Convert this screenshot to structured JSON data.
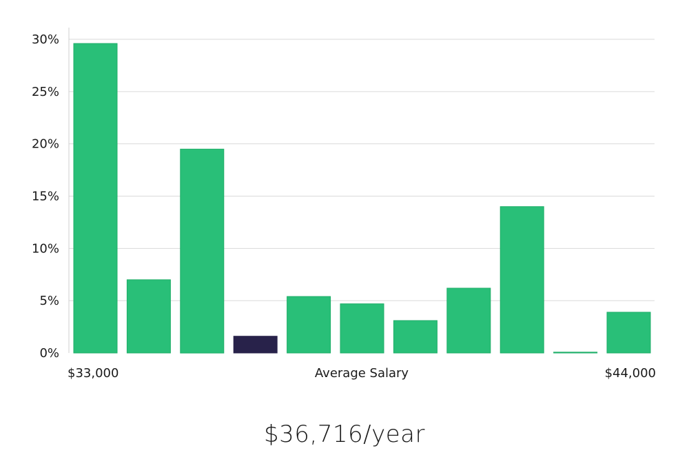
{
  "chart_data": {
    "type": "bar",
    "title": "",
    "xlabel": "Average Salary",
    "ylabel": "",
    "x_min_label": "$33,000",
    "x_max_label": "$44,000",
    "ylim": [
      0,
      30
    ],
    "yticks": [
      0,
      5,
      10,
      15,
      20,
      25,
      30
    ],
    "ytick_labels": [
      "0%",
      "5%",
      "10%",
      "15%",
      "20%",
      "25%",
      "30%"
    ],
    "values": [
      29.6,
      7.0,
      19.5,
      1.6,
      5.4,
      4.7,
      3.1,
      6.2,
      14.0,
      0.05,
      3.9
    ],
    "highlight_index": 3,
    "colors": {
      "bar": "#29bf78",
      "bar_edge": "#1fae68",
      "highlight": "#28224a"
    }
  },
  "summary": {
    "average_salary": "$36,716/year"
  }
}
